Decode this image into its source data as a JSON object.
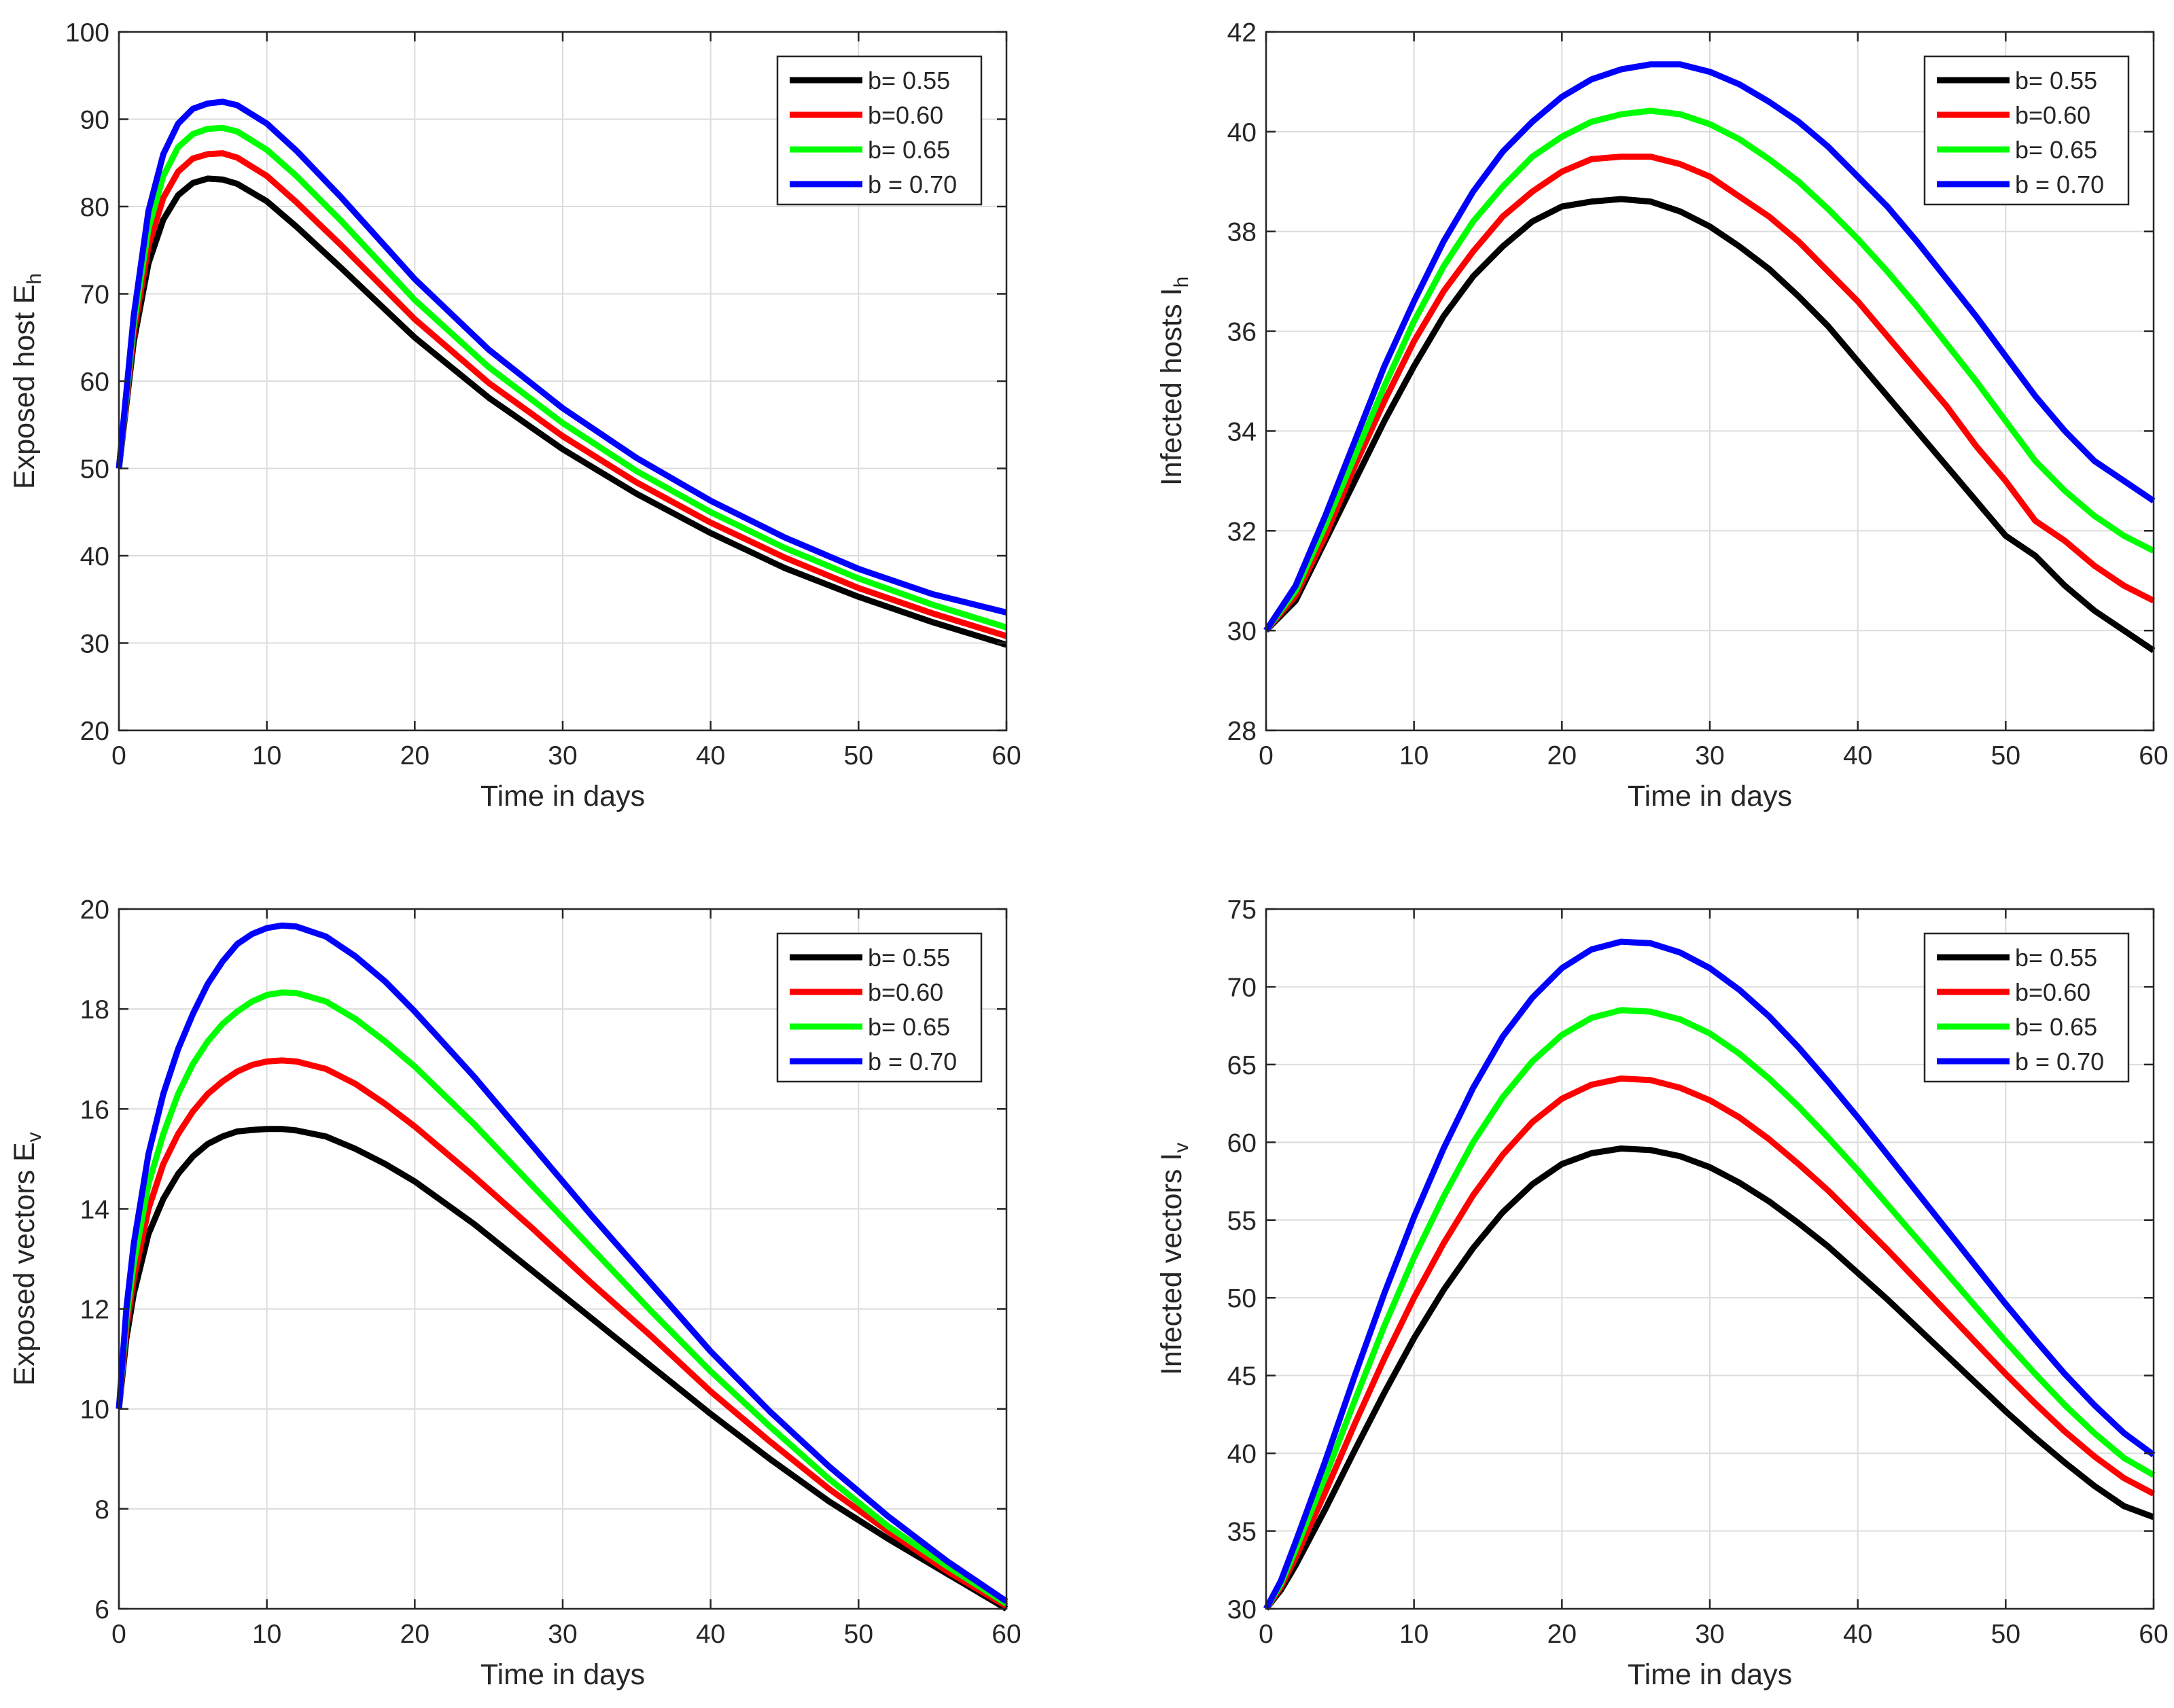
{
  "chart_data": [
    {
      "type": "line",
      "title": "",
      "xlabel": "Time in days",
      "ylabel_main": "Exposed host E",
      "ylabel_sub": "h",
      "xlim": [
        0,
        60
      ],
      "ylim": [
        20,
        100
      ],
      "xticks": [
        0,
        10,
        20,
        30,
        40,
        50,
        60
      ],
      "yticks": [
        20,
        30,
        40,
        50,
        60,
        70,
        80,
        90,
        100
      ],
      "grid": true,
      "legend_position": "top-right",
      "x": [
        0,
        1,
        2,
        3,
        4,
        5,
        6,
        7,
        8,
        10,
        12,
        15,
        20,
        25,
        30,
        35,
        40,
        45,
        50,
        55,
        60
      ],
      "series": [
        {
          "name": "b= 0.55",
          "color": "#000000",
          "values": [
            50,
            64.5,
            73.5,
            78.5,
            81.3,
            82.7,
            83.2,
            83.1,
            82.6,
            80.6,
            77.7,
            73.0,
            65.0,
            58.1,
            52.2,
            47.1,
            42.6,
            38.6,
            35.3,
            32.4,
            29.8
          ]
        },
        {
          "name": "b=0.60",
          "color": "#ff0000",
          "values": [
            50,
            65.5,
            75.5,
            81.0,
            84.0,
            85.5,
            86.0,
            86.1,
            85.6,
            83.5,
            80.5,
            75.6,
            67.1,
            59.8,
            53.7,
            48.4,
            43.8,
            39.8,
            36.3,
            33.4,
            30.8
          ]
        },
        {
          "name": "b= 0.65",
          "color": "#00ff00",
          "values": [
            50,
            66.5,
            77.5,
            83.5,
            86.8,
            88.3,
            88.9,
            89.0,
            88.6,
            86.5,
            83.5,
            78.4,
            69.3,
            61.6,
            55.2,
            49.7,
            45.0,
            40.9,
            37.4,
            34.4,
            31.8
          ]
        },
        {
          "name": "b = 0.70",
          "color": "#0000ff",
          "values": [
            50,
            67.5,
            79.5,
            86.0,
            89.5,
            91.2,
            91.8,
            92.0,
            91.6,
            89.5,
            86.4,
            81.1,
            71.7,
            63.6,
            56.9,
            51.2,
            46.3,
            42.1,
            38.5,
            35.6,
            33.5
          ]
        }
      ]
    },
    {
      "type": "line",
      "title": "",
      "xlabel": "Time in days",
      "ylabel_main": "Infected  hosts I",
      "ylabel_sub": "h",
      "xlim": [
        0,
        60
      ],
      "ylim": [
        28,
        42
      ],
      "xticks": [
        0,
        10,
        20,
        30,
        40,
        50,
        60
      ],
      "yticks": [
        28,
        30,
        32,
        34,
        36,
        38,
        40,
        42
      ],
      "grid": true,
      "legend_position": "top-right",
      "x": [
        0,
        2,
        4,
        6,
        8,
        10,
        12,
        14,
        16,
        18,
        20,
        22,
        24,
        26,
        28,
        30,
        32,
        34,
        36,
        38,
        40,
        42,
        44,
        46,
        48,
        50,
        52,
        54,
        56,
        58,
        60
      ],
      "series": [
        {
          "name": "b= 0.55",
          "color": "#000000",
          "values": [
            30.0,
            30.6,
            31.8,
            33.0,
            34.2,
            35.3,
            36.3,
            37.1,
            37.7,
            38.2,
            38.5,
            38.6,
            38.65,
            38.6,
            38.4,
            38.1,
            37.7,
            37.25,
            36.7,
            36.1,
            35.4,
            34.7,
            34.0,
            33.3,
            32.6,
            31.9,
            31.5,
            30.9,
            30.4,
            30.0,
            29.6
          ]
        },
        {
          "name": "b=0.60",
          "color": "#ff0000",
          "values": [
            30.0,
            30.7,
            31.9,
            33.3,
            34.6,
            35.8,
            36.8,
            37.6,
            38.3,
            38.8,
            39.2,
            39.45,
            39.5,
            39.5,
            39.35,
            39.1,
            38.7,
            38.3,
            37.8,
            37.2,
            36.6,
            35.9,
            35.2,
            34.5,
            33.7,
            33.0,
            32.2,
            31.8,
            31.3,
            30.9,
            30.6
          ]
        },
        {
          "name": "b= 0.65",
          "color": "#00ff00",
          "values": [
            30.0,
            30.8,
            32.1,
            33.5,
            34.9,
            36.2,
            37.3,
            38.2,
            38.9,
            39.5,
            39.9,
            40.2,
            40.35,
            40.42,
            40.35,
            40.15,
            39.85,
            39.45,
            39.0,
            38.45,
            37.85,
            37.2,
            36.5,
            35.75,
            35.0,
            34.2,
            33.4,
            32.8,
            32.3,
            31.9,
            31.6
          ]
        },
        {
          "name": "b = 0.70",
          "color": "#0000ff",
          "values": [
            30.0,
            30.9,
            32.3,
            33.8,
            35.3,
            36.6,
            37.8,
            38.8,
            39.6,
            40.2,
            40.7,
            41.05,
            41.25,
            41.35,
            41.35,
            41.2,
            40.95,
            40.6,
            40.2,
            39.7,
            39.1,
            38.5,
            37.8,
            37.05,
            36.3,
            35.5,
            34.7,
            34.0,
            33.4,
            33.0,
            32.6
          ]
        }
      ]
    },
    {
      "type": "line",
      "title": "",
      "xlabel": "Time in days",
      "ylabel_main": "Exposed vectors E",
      "ylabel_sub": "v",
      "xlim": [
        0,
        60
      ],
      "ylim": [
        6,
        20
      ],
      "xticks": [
        0,
        10,
        20,
        30,
        40,
        50,
        60
      ],
      "yticks": [
        6,
        8,
        10,
        12,
        14,
        16,
        18,
        20
      ],
      "grid": true,
      "legend_position": "top-right",
      "x": [
        0,
        0.5,
        1,
        2,
        3,
        4,
        5,
        6,
        7,
        8,
        9,
        10,
        11,
        12,
        14,
        16,
        18,
        20,
        24,
        28,
        32,
        36,
        40,
        44,
        48,
        52,
        56,
        60
      ],
      "series": [
        {
          "name": "b= 0.55",
          "color": "#000000",
          "values": [
            10.0,
            11.4,
            12.3,
            13.5,
            14.2,
            14.7,
            15.05,
            15.3,
            15.45,
            15.55,
            15.58,
            15.6,
            15.6,
            15.57,
            15.45,
            15.2,
            14.9,
            14.55,
            13.7,
            12.75,
            11.8,
            10.85,
            9.9,
            9.0,
            8.15,
            7.4,
            6.7,
            6.0
          ]
        },
        {
          "name": "b=0.60",
          "color": "#ff0000",
          "values": [
            10.0,
            11.6,
            12.6,
            14.0,
            14.9,
            15.5,
            15.95,
            16.3,
            16.55,
            16.75,
            16.88,
            16.95,
            16.97,
            16.95,
            16.8,
            16.5,
            16.1,
            15.65,
            14.65,
            13.6,
            12.5,
            11.45,
            10.35,
            9.35,
            8.4,
            7.55,
            6.75,
            6.05
          ]
        },
        {
          "name": "b= 0.65",
          "color": "#00ff00",
          "values": [
            10.0,
            11.8,
            12.9,
            14.5,
            15.5,
            16.3,
            16.9,
            17.35,
            17.7,
            17.95,
            18.15,
            18.28,
            18.33,
            18.32,
            18.15,
            17.8,
            17.35,
            16.85,
            15.7,
            14.45,
            13.2,
            11.95,
            10.75,
            9.65,
            8.6,
            7.65,
            6.85,
            6.1
          ]
        },
        {
          "name": "b = 0.70",
          "color": "#0000ff",
          "values": [
            10.0,
            12.0,
            13.3,
            15.1,
            16.3,
            17.2,
            17.9,
            18.5,
            18.95,
            19.3,
            19.5,
            19.62,
            19.67,
            19.65,
            19.45,
            19.05,
            18.55,
            17.95,
            16.65,
            15.25,
            13.85,
            12.5,
            11.15,
            9.95,
            8.85,
            7.85,
            6.95,
            6.15
          ]
        }
      ]
    },
    {
      "type": "line",
      "title": "",
      "xlabel": "Time in days",
      "ylabel_main": "Infected vectors I",
      "ylabel_sub": "v",
      "xlim": [
        0,
        60
      ],
      "ylim": [
        30,
        75
      ],
      "xticks": [
        0,
        10,
        20,
        30,
        40,
        50,
        60
      ],
      "yticks": [
        30,
        35,
        40,
        45,
        50,
        55,
        60,
        65,
        70,
        75
      ],
      "grid": true,
      "legend_position": "top-right",
      "x": [
        0,
        1,
        2,
        4,
        6,
        8,
        10,
        12,
        14,
        16,
        18,
        20,
        22,
        24,
        26,
        28,
        30,
        32,
        34,
        36,
        38,
        40,
        42,
        44,
        46,
        48,
        50,
        52,
        54,
        56,
        58,
        60
      ],
      "series": [
        {
          "name": "b= 0.55",
          "color": "#000000",
          "values": [
            30.0,
            31.2,
            32.8,
            36.4,
            40.2,
            43.9,
            47.4,
            50.5,
            53.2,
            55.5,
            57.3,
            58.6,
            59.3,
            59.6,
            59.5,
            59.1,
            58.4,
            57.4,
            56.2,
            54.8,
            53.3,
            51.6,
            49.9,
            48.1,
            46.3,
            44.5,
            42.7,
            41.0,
            39.4,
            37.9,
            36.6,
            35.9
          ]
        },
        {
          "name": "b=0.60",
          "color": "#ff0000",
          "values": [
            30.0,
            31.4,
            33.3,
            37.5,
            41.9,
            46.1,
            50.0,
            53.5,
            56.6,
            59.2,
            61.3,
            62.8,
            63.7,
            64.1,
            64.0,
            63.5,
            62.7,
            61.6,
            60.2,
            58.6,
            56.9,
            55.0,
            53.1,
            51.1,
            49.1,
            47.1,
            45.1,
            43.2,
            41.4,
            39.8,
            38.4,
            37.4
          ]
        },
        {
          "name": "b= 0.65",
          "color": "#00ff00",
          "values": [
            30.0,
            31.6,
            33.8,
            38.5,
            43.4,
            48.2,
            52.6,
            56.5,
            60.0,
            62.9,
            65.2,
            66.9,
            68.0,
            68.5,
            68.4,
            67.9,
            67.0,
            65.7,
            64.1,
            62.3,
            60.3,
            58.2,
            56.0,
            53.8,
            51.6,
            49.4,
            47.2,
            45.1,
            43.1,
            41.3,
            39.7,
            38.6
          ]
        },
        {
          "name": "b = 0.70",
          "color": "#0000ff",
          "values": [
            30.0,
            31.8,
            34.3,
            39.5,
            45.0,
            50.3,
            55.2,
            59.6,
            63.5,
            66.8,
            69.3,
            71.2,
            72.4,
            72.9,
            72.8,
            72.2,
            71.2,
            69.8,
            68.1,
            66.1,
            63.9,
            61.6,
            59.2,
            56.8,
            54.4,
            52.0,
            49.6,
            47.3,
            45.1,
            43.1,
            41.3,
            39.9
          ]
        }
      ]
    }
  ]
}
